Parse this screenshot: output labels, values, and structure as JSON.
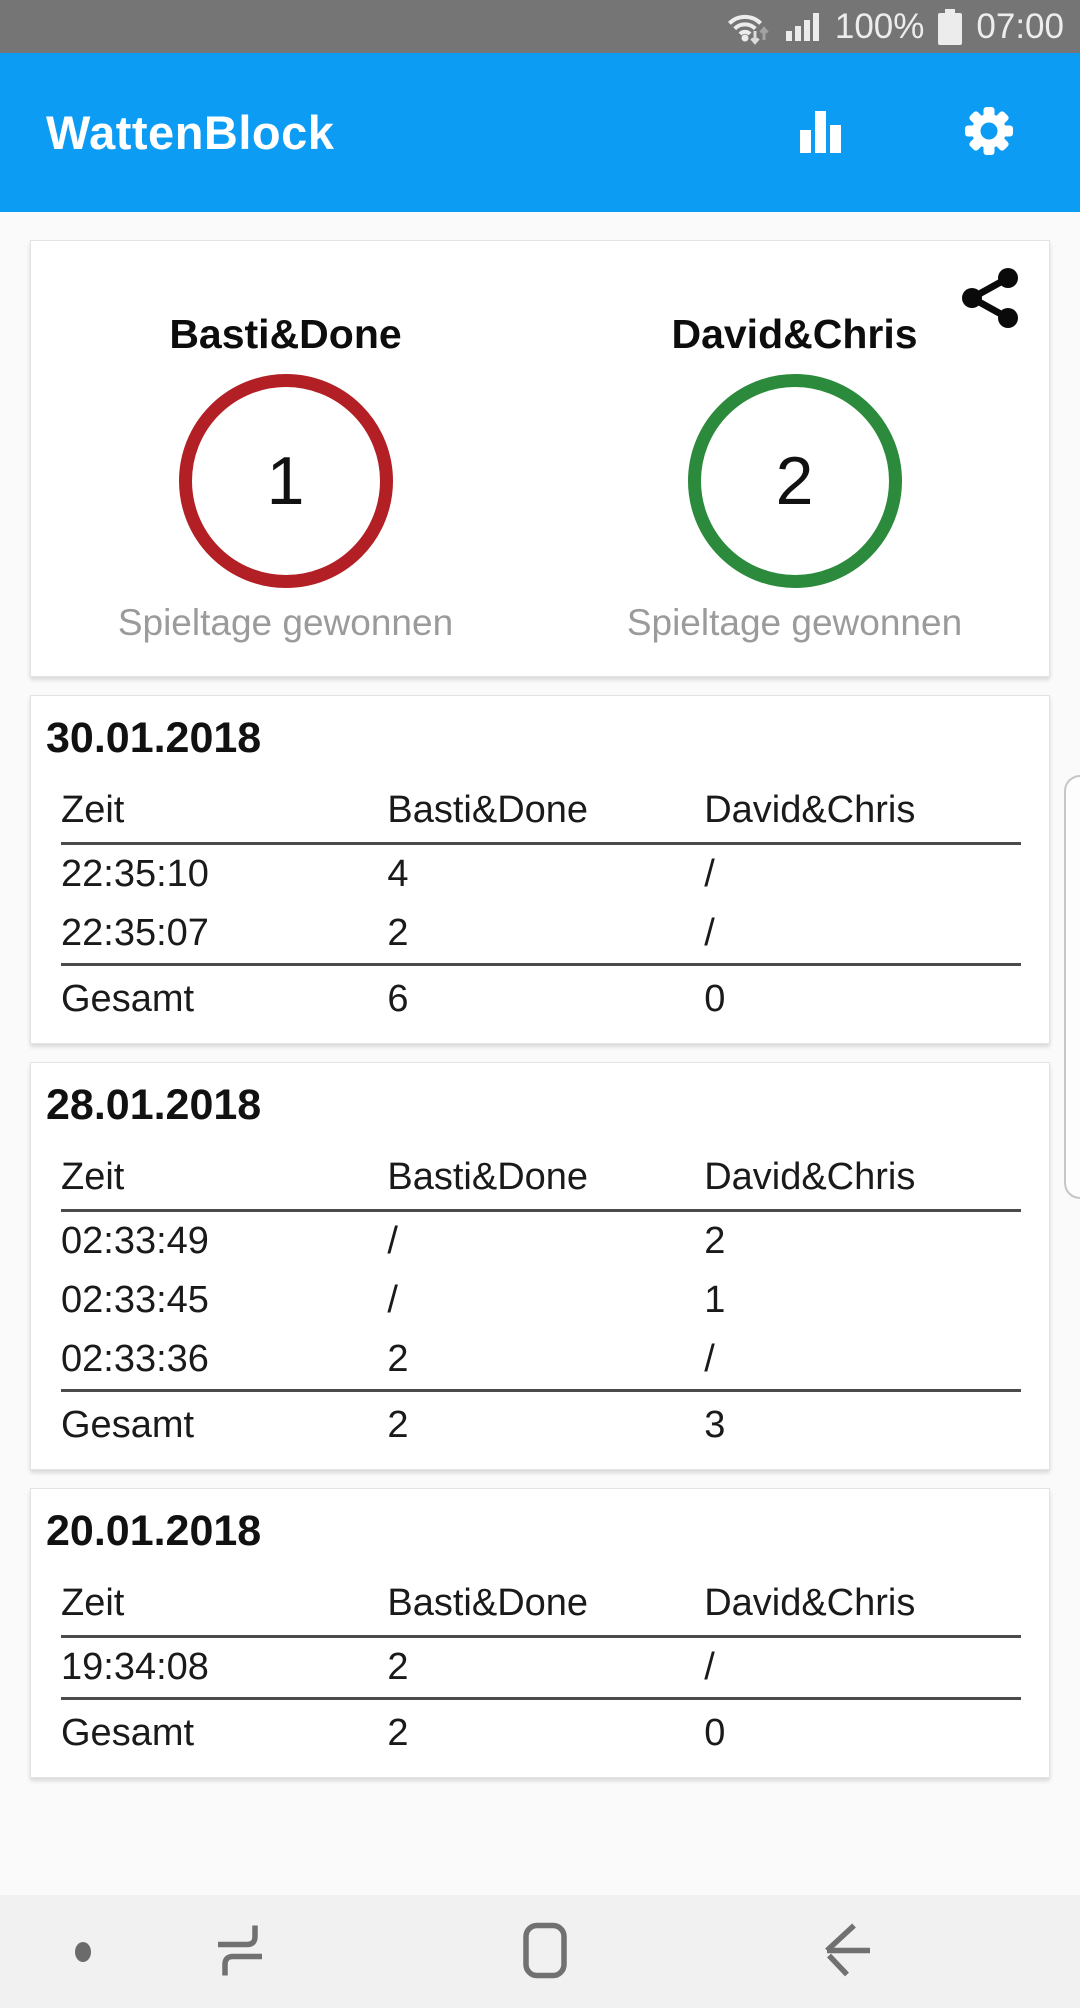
{
  "status_bar": {
    "battery_level": "100%",
    "time": "07:00"
  },
  "app_bar": {
    "title": "WattenBlock"
  },
  "summary_card": {
    "teams": [
      {
        "name": "Basti&Done",
        "score": "1",
        "circle_color": "#b22025",
        "caption": "Spieltage gewonnen"
      },
      {
        "name": "David&Chris",
        "score": "2",
        "circle_color": "#2b8a3c",
        "caption": "Spieltage gewonnen"
      }
    ]
  },
  "game_days": [
    {
      "date": "30.01.2018",
      "columns": [
        "Zeit",
        "Basti&Done",
        "David&Chris"
      ],
      "rows": [
        [
          "22:35:10",
          "4",
          "/"
        ],
        [
          "22:35:07",
          "2",
          "/"
        ]
      ],
      "total_row": [
        "Gesamt",
        "6",
        "0"
      ]
    },
    {
      "date": "28.01.2018",
      "columns": [
        "Zeit",
        "Basti&Done",
        "David&Chris"
      ],
      "rows": [
        [
          "02:33:49",
          "/",
          "2"
        ],
        [
          "02:33:45",
          "/",
          "1"
        ],
        [
          "02:33:36",
          "2",
          "/"
        ]
      ],
      "total_row": [
        "Gesamt",
        "2",
        "3"
      ]
    },
    {
      "date": "20.01.2018",
      "columns": [
        "Zeit",
        "Basti&Done",
        "David&Chris"
      ],
      "rows": [
        [
          "19:34:08",
          "2",
          "/"
        ]
      ],
      "total_row": [
        "Gesamt",
        "2",
        "0"
      ]
    }
  ],
  "colors": {
    "app_bar_blue": "#0d9cf4",
    "status_bar_gray": "#757575",
    "team1_red": "#b22025",
    "team2_green": "#2b8a3c"
  }
}
